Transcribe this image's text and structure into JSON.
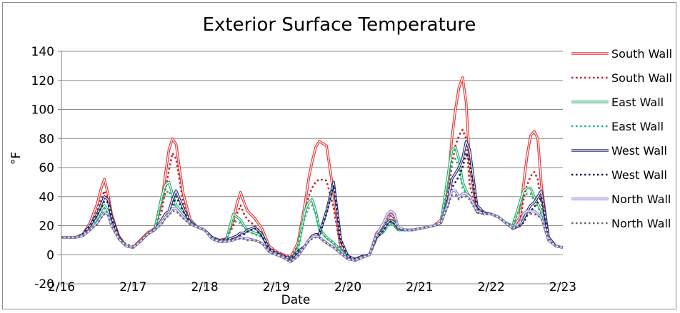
{
  "chart_data": {
    "type": "line",
    "title": "Exterior Surface Temperature",
    "xlabel": "Date",
    "ylabel": "°F",
    "x_ticks": [
      "2/16",
      "2/17",
      "2/18",
      "2/19",
      "2/20",
      "2/21",
      "2/22",
      "2/23"
    ],
    "y_ticks": [
      "140",
      "120",
      "100",
      "80",
      "60",
      "40",
      "20",
      "0",
      "-20"
    ],
    "ylim": [
      -20,
      140
    ],
    "grid": "horizontal",
    "legend_position": "right",
    "x": [
      0.0,
      0.1,
      0.2,
      0.3,
      0.4,
      0.5,
      0.55,
      0.6,
      0.65,
      0.7,
      0.8,
      0.9,
      1.0,
      1.1,
      1.2,
      1.3,
      1.4,
      1.45,
      1.5,
      1.55,
      1.6,
      1.7,
      1.8,
      1.9,
      2.0,
      2.1,
      2.2,
      2.3,
      2.4,
      2.45,
      2.5,
      2.55,
      2.6,
      2.7,
      2.8,
      2.9,
      3.0,
      3.1,
      3.2,
      3.3,
      3.4,
      3.45,
      3.5,
      3.55,
      3.6,
      3.7,
      3.8,
      3.9,
      4.0,
      4.1,
      4.2,
      4.3,
      4.4,
      4.5,
      4.55,
      4.6,
      4.65,
      4.7,
      4.8,
      4.9,
      5.0,
      5.1,
      5.2,
      5.3,
      5.4,
      5.45,
      5.5,
      5.55,
      5.6,
      5.65,
      5.7,
      5.8,
      5.9,
      6.0,
      6.1,
      6.2,
      6.3,
      6.4,
      6.45,
      6.5,
      6.55,
      6.6,
      6.65,
      6.7,
      6.8,
      6.9,
      7.0
    ],
    "series": [
      {
        "name": "South Wall",
        "style": "double",
        "color": "#e03c3c",
        "values": [
          12,
          12,
          12,
          14,
          22,
          35,
          45,
          52,
          42,
          28,
          13,
          6,
          5,
          10,
          15,
          18,
          36,
          55,
          72,
          80,
          76,
          42,
          24,
          19,
          17,
          12,
          10,
          11,
          24,
          35,
          43,
          36,
          30,
          25,
          18,
          6,
          2,
          0,
          -2,
          8,
          35,
          52,
          64,
          74,
          78,
          75,
          42,
          4,
          -2,
          -3,
          -1,
          0,
          15,
          20,
          25,
          28,
          25,
          19,
          17,
          17,
          18,
          19,
          20,
          24,
          50,
          80,
          100,
          115,
          122,
          105,
          62,
          30,
          28,
          28,
          26,
          22,
          18,
          26,
          48,
          68,
          82,
          85,
          80,
          48,
          12,
          6,
          5
        ]
      },
      {
        "name": "South Wall",
        "style": "dotted",
        "color": "#cc1c2c",
        "values": [
          12,
          12,
          12,
          13,
          20,
          30,
          38,
          44,
          37,
          25,
          13,
          7,
          6,
          10,
          15,
          18,
          30,
          44,
          58,
          70,
          66,
          36,
          22,
          19,
          17,
          12,
          10,
          11,
          20,
          28,
          34,
          28,
          24,
          20,
          15,
          5,
          2,
          0,
          -2,
          6,
          28,
          40,
          46,
          50,
          52,
          51,
          32,
          4,
          -2,
          -3,
          -1,
          0,
          14,
          18,
          22,
          25,
          22,
          18,
          17,
          17,
          18,
          19,
          20,
          22,
          42,
          62,
          75,
          82,
          86,
          80,
          48,
          29,
          28,
          28,
          26,
          22,
          18,
          22,
          38,
          48,
          54,
          57,
          52,
          35,
          10,
          6,
          5
        ]
      },
      {
        "name": "East Wall",
        "style": "double",
        "color": "#2aaf6a",
        "values": [
          12,
          12,
          12,
          13,
          18,
          25,
          30,
          34,
          30,
          22,
          12,
          6,
          5,
          9,
          14,
          17,
          40,
          48,
          50,
          42,
          34,
          28,
          23,
          19,
          17,
          12,
          10,
          10,
          28,
          26,
          24,
          20,
          17,
          15,
          13,
          4,
          1,
          -1,
          -3,
          4,
          30,
          36,
          38,
          30,
          18,
          12,
          8,
          3,
          -2,
          -3,
          -1,
          0,
          12,
          16,
          20,
          22,
          20,
          17,
          17,
          17,
          18,
          19,
          20,
          22,
          56,
          72,
          74,
          66,
          50,
          44,
          40,
          30,
          28,
          28,
          26,
          22,
          20,
          36,
          44,
          46,
          46,
          40,
          35,
          30,
          10,
          6,
          5
        ]
      },
      {
        "name": "East Wall",
        "style": "dotted",
        "color": "#22b47a",
        "values": [
          12,
          12,
          12,
          13,
          18,
          24,
          28,
          32,
          28,
          21,
          12,
          6,
          5,
          9,
          14,
          17,
          36,
          42,
          44,
          38,
          32,
          26,
          22,
          19,
          17,
          12,
          10,
          10,
          24,
          22,
          22,
          19,
          16,
          14,
          12,
          4,
          1,
          -1,
          -3,
          4,
          26,
          32,
          34,
          28,
          17,
          11,
          8,
          3,
          -2,
          -3,
          -1,
          0,
          12,
          16,
          20,
          22,
          20,
          17,
          17,
          17,
          18,
          19,
          20,
          22,
          50,
          64,
          66,
          60,
          46,
          42,
          40,
          30,
          28,
          28,
          26,
          22,
          20,
          32,
          40,
          42,
          42,
          37,
          33,
          28,
          10,
          6,
          5
        ]
      },
      {
        "name": "West Wall",
        "style": "double",
        "color": "#2a2f78",
        "values": [
          12,
          12,
          12,
          14,
          20,
          28,
          34,
          40,
          38,
          26,
          12,
          6,
          5,
          9,
          14,
          17,
          24,
          28,
          30,
          38,
          44,
          32,
          22,
          19,
          17,
          12,
          10,
          10,
          12,
          13,
          15,
          15,
          17,
          19,
          14,
          4,
          1,
          -1,
          -3,
          2,
          6,
          10,
          13,
          14,
          14,
          30,
          50,
          10,
          -1,
          -3,
          -1,
          0,
          12,
          18,
          22,
          24,
          22,
          18,
          17,
          17,
          18,
          19,
          20,
          22,
          38,
          52,
          56,
          60,
          66,
          78,
          72,
          34,
          29,
          28,
          26,
          22,
          18,
          20,
          24,
          30,
          34,
          36,
          40,
          44,
          12,
          6,
          5
        ]
      },
      {
        "name": "West Wall",
        "style": "dotted",
        "color": "#1a1f4a",
        "values": [
          12,
          12,
          12,
          14,
          20,
          27,
          32,
          37,
          36,
          25,
          12,
          6,
          5,
          9,
          14,
          17,
          22,
          26,
          28,
          34,
          40,
          30,
          22,
          19,
          17,
          12,
          10,
          10,
          11,
          12,
          13,
          14,
          16,
          18,
          13,
          4,
          1,
          -1,
          -3,
          2,
          6,
          9,
          12,
          13,
          14,
          28,
          48,
          10,
          -1,
          -3,
          -1,
          0,
          12,
          17,
          21,
          23,
          21,
          18,
          17,
          17,
          18,
          19,
          20,
          22,
          34,
          46,
          50,
          54,
          60,
          70,
          64,
          32,
          29,
          28,
          26,
          22,
          18,
          20,
          22,
          27,
          30,
          33,
          36,
          40,
          11,
          6,
          5
        ]
      },
      {
        "name": "North Wall",
        "style": "double",
        "color": "#8a7fd6",
        "values": [
          12,
          12,
          12,
          13,
          17,
          22,
          26,
          29,
          28,
          20,
          11,
          6,
          5,
          9,
          14,
          17,
          22,
          26,
          28,
          32,
          32,
          26,
          21,
          19,
          17,
          11,
          9,
          9,
          10,
          11,
          12,
          11,
          11,
          10,
          8,
          2,
          0,
          -2,
          -5,
          -1,
          6,
          10,
          12,
          13,
          12,
          8,
          5,
          1,
          -3,
          -4,
          -2,
          0,
          14,
          22,
          28,
          30,
          28,
          19,
          17,
          17,
          18,
          19,
          20,
          22,
          36,
          44,
          44,
          40,
          42,
          42,
          40,
          30,
          28,
          28,
          26,
          22,
          18,
          22,
          28,
          30,
          30,
          30,
          28,
          26,
          10,
          6,
          5
        ]
      },
      {
        "name": "North Wall",
        "style": "dotted",
        "color": "#6a6a6a",
        "values": [
          12,
          12,
          12,
          13,
          17,
          21,
          25,
          28,
          27,
          20,
          11,
          6,
          5,
          9,
          14,
          17,
          21,
          25,
          27,
          30,
          30,
          25,
          21,
          19,
          17,
          11,
          9,
          9,
          10,
          11,
          11,
          11,
          10,
          10,
          8,
          2,
          0,
          -2,
          -5,
          -1,
          6,
          9,
          11,
          12,
          12,
          8,
          5,
          1,
          -3,
          -4,
          -2,
          0,
          13,
          20,
          25,
          27,
          25,
          18,
          17,
          17,
          18,
          19,
          20,
          22,
          34,
          41,
          41,
          38,
          40,
          40,
          38,
          29,
          28,
          28,
          26,
          22,
          18,
          21,
          26,
          28,
          28,
          28,
          27,
          25,
          10,
          6,
          5
        ]
      }
    ]
  }
}
